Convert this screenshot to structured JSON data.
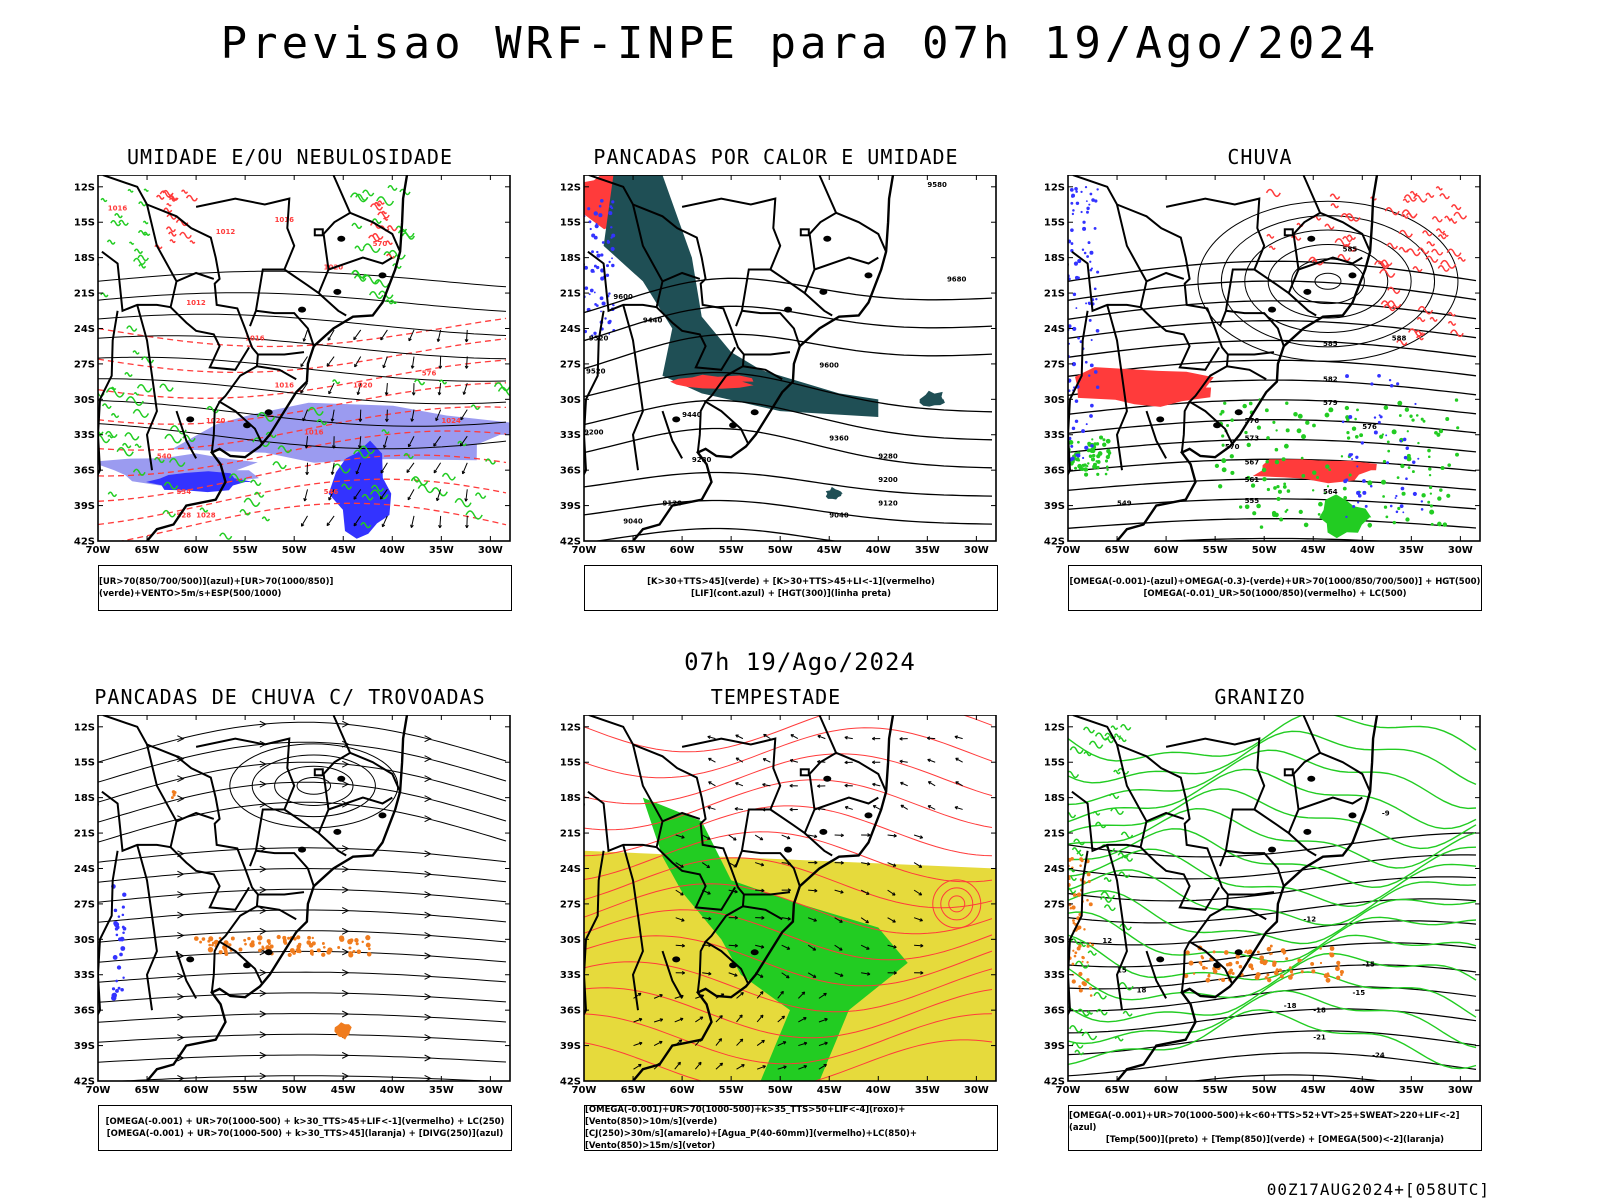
{
  "title": "Previsao WRF-INPE  para 07h 19/Ago/2024",
  "mid_time": "07h 19/Ago/2024",
  "footer": "00Z17AUG2024+[058UTC]",
  "lat_labels": [
    "12S",
    "15S",
    "18S",
    "21S",
    "24S",
    "27S",
    "30S",
    "33S",
    "36S",
    "39S",
    "42S"
  ],
  "lon_labels": [
    "70W",
    "65W",
    "60W",
    "55W",
    "50W",
    "45W",
    "40W",
    "35W",
    "30W"
  ],
  "panels": [
    {
      "title": "UMIDADE E/OU NEBULOSIDADE",
      "legend": [
        "[UR>70(850/700/500)](azul)+[UR>70(1000/850)](verde)+VENTO>5m/s+ESP(500/1000)"
      ],
      "contour_labels": [
        "1016",
        "1012",
        "1016",
        "1020",
        "1012",
        "1016",
        "1016",
        "1020",
        "1024",
        "1016",
        "1020",
        "1028",
        "570",
        "576",
        "546",
        "540",
        "534",
        "528"
      ]
    },
    {
      "title": "PANCADAS POR CALOR E UMIDADE",
      "legend": [
        "[K>30+TTS>45](verde) + [K>30+TTS>45+LI<-1](vermelho)",
        "[LIF](cont.azul) + [HGT(300)](linha preta)"
      ],
      "contour_labels": [
        "9580",
        "9680",
        "9600",
        "9520",
        "9440",
        "9600",
        "9520",
        "9440",
        "9360",
        "9280",
        "9200",
        "9120",
        "9040",
        "9200",
        "9280",
        "9120",
        "9040"
      ]
    },
    {
      "title": "CHUVA",
      "legend": [
        "[OMEGA(-0.001)-(azul)+OMEGA(-0.3)-(verde)+UR>70(1000/850/700/500)] + HGT(500)",
        "[OMEGA(-0.01)_UR>50(1000/850)(vermelho) + LC(500)"
      ],
      "contour_labels": [
        "585",
        "588",
        "585",
        "582",
        "579",
        "576",
        "573",
        "570",
        "567",
        "561",
        "555",
        "549",
        "564",
        "576"
      ]
    },
    {
      "title": "PANCADAS DE CHUVA C/ TROVOADAS",
      "legend": [
        "[OMEGA(-0.001) + UR>70(1000-500) + k>30_TTS>45+LIF<-1](vermelho) + LC(250)",
        "[OMEGA(-0.001) + UR>70(1000-500) + k>30_TTS>45](laranja) + [DIVG(250)](azul)"
      ],
      "contour_labels": []
    },
    {
      "title": "TEMPESTADE",
      "legend": [
        "[OMEGA(-0.001)+UR>70(1000-500)+k>35_TTS>50+LIF<-4](roxo)+[Vento(850)>10m/s](verde)",
        "[CJ(250)>30m/s](amarelo)+[Agua_P(40-60mm)](vermelho)+LC(850)+[Vento(850)>15m/s](vetor)"
      ],
      "contour_labels": []
    },
    {
      "title": "GRANIZO",
      "legend": [
        "[OMEGA(-0.001)+UR>70(1000-500)+k<60+TTS>52+VT>25+SWEAT>220+LIF<-2](azul)",
        "[Temp(500)](preto) + [Temp(850)](verde) + [OMEGA(500)<-2](laranja)"
      ],
      "contour_labels": [
        "-9",
        "-12",
        "-15",
        "-18",
        "-21",
        "-24",
        "-15",
        "-18",
        "12",
        "15",
        "18"
      ]
    }
  ],
  "colors": {
    "red": "#ff3b3b",
    "green": "#22cc22",
    "blue": "#3333ff",
    "lavender": "#9b9bf0",
    "teal": "#1f4f55",
    "yellow": "#e6da3c",
    "orange": "#f07c1e"
  }
}
